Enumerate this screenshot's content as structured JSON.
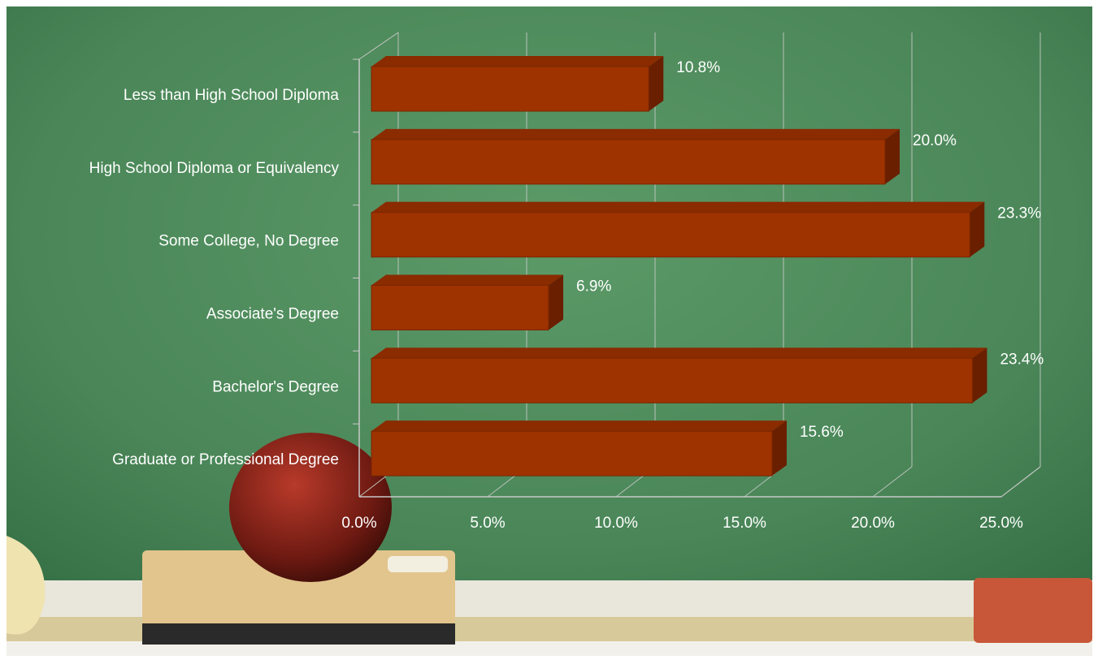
{
  "chart_data": {
    "type": "bar3d_horizontal",
    "categories": [
      "Less than High School Diploma",
      "High School Diploma or Equivalency",
      "Some College, No Degree",
      "Associate's Degree",
      "Bachelor's Degree",
      "Graduate or Professional Degree"
    ],
    "values": [
      10.8,
      20.0,
      23.3,
      6.9,
      23.4,
      15.6
    ],
    "value_labels": [
      "10.8%",
      "20.0%",
      "23.3%",
      "6.9%",
      "23.4%",
      "15.6%"
    ],
    "color": "#9e3300",
    "xlim": [
      0,
      25
    ],
    "xticks": [
      {
        "value": 0,
        "label": "0.0%"
      },
      {
        "value": 5,
        "label": "5.0%"
      },
      {
        "value": 10,
        "label": "10.0%"
      },
      {
        "value": 15,
        "label": "15.0%"
      },
      {
        "value": 20,
        "label": "20.0%"
      },
      {
        "value": 25,
        "label": "25.0%"
      }
    ],
    "grid": true
  }
}
